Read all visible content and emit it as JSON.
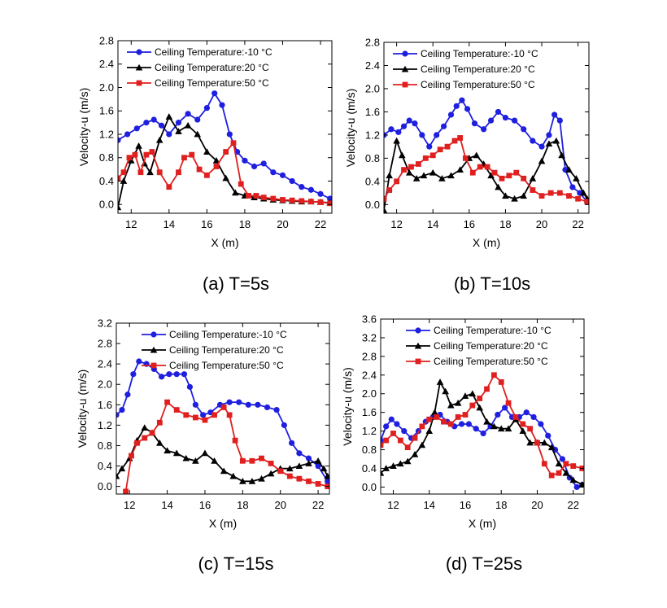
{
  "chart_data": [
    {
      "type": "line",
      "caption": "(a) T=5s",
      "xlabel": "X (m)",
      "ylabel": "Velocity-u (m/s)",
      "xlim": [
        11.3,
        22.6
      ],
      "ylim": [
        -0.15,
        2.8
      ],
      "xticks": [
        12,
        14,
        16,
        18,
        20,
        22
      ],
      "yticks": [
        0.0,
        0.4,
        0.8,
        1.2,
        1.6,
        2.0,
        2.4,
        2.8
      ],
      "yticklabels": [
        "0.0",
        "0.4",
        "0.8",
        "1.2",
        "1.6",
        "2.0",
        "2.4",
        "2.8"
      ],
      "legend_pos": "top-left",
      "series": [
        {
          "name": "Ceiling Temperature:-10 °C",
          "color": "#1f1fe0",
          "marker": "circle",
          "x": [
            11.3,
            11.8,
            12.3,
            12.8,
            13.2,
            13.6,
            14.0,
            14.5,
            15.0,
            15.5,
            16.0,
            16.4,
            16.8,
            17.2,
            17.6,
            18.0,
            18.5,
            19.0,
            19.5,
            20.0,
            20.5,
            21.0,
            21.5,
            22.0,
            22.5
          ],
          "y": [
            1.1,
            1.2,
            1.3,
            1.4,
            1.45,
            1.35,
            1.2,
            1.4,
            1.55,
            1.45,
            1.65,
            1.9,
            1.7,
            1.2,
            0.9,
            0.75,
            0.65,
            0.7,
            0.55,
            0.5,
            0.4,
            0.3,
            0.25,
            0.18,
            0.1
          ]
        },
        {
          "name": "Ceiling Temperature:20 °C",
          "color": "#000000",
          "marker": "triangle",
          "x": [
            11.3,
            11.6,
            12.0,
            12.4,
            12.7,
            13.0,
            13.5,
            14.0,
            14.5,
            15.0,
            15.5,
            16.0,
            16.5,
            17.0,
            17.5,
            18.0,
            18.5,
            19.0,
            19.5,
            20.0,
            20.5,
            21.0,
            21.5,
            22.0,
            22.5
          ],
          "y": [
            -0.05,
            0.4,
            0.75,
            1.0,
            0.7,
            0.55,
            1.1,
            1.5,
            1.25,
            1.35,
            1.2,
            0.9,
            0.75,
            0.45,
            0.2,
            0.15,
            0.12,
            0.1,
            0.08,
            0.07,
            0.06,
            0.05,
            0.05,
            0.04,
            0.03
          ]
        },
        {
          "name": "Ceiling Temperature:50 °C",
          "color": "#e01f1f",
          "marker": "square",
          "x": [
            11.3,
            11.6,
            11.9,
            12.2,
            12.5,
            12.8,
            13.1,
            13.5,
            14.0,
            14.5,
            14.8,
            15.2,
            15.6,
            16.0,
            16.5,
            17.0,
            17.4,
            17.8,
            18.2,
            18.6,
            19.0,
            19.5,
            20.0,
            20.5,
            21.0,
            21.5,
            22.0,
            22.5
          ],
          "y": [
            0.45,
            0.55,
            0.8,
            0.85,
            0.55,
            0.85,
            0.9,
            0.55,
            0.3,
            0.55,
            0.8,
            0.85,
            0.6,
            0.5,
            0.65,
            0.9,
            1.05,
            0.35,
            0.15,
            0.15,
            0.12,
            0.1,
            0.08,
            0.07,
            0.06,
            0.05,
            0.04,
            0.02
          ]
        }
      ]
    },
    {
      "type": "line",
      "caption": "(b) T=10s",
      "xlabel": "X (m)",
      "ylabel": "Velocity-u (m/s)",
      "xlim": [
        11.3,
        22.6
      ],
      "ylim": [
        -0.15,
        2.8
      ],
      "xticks": [
        12,
        14,
        16,
        18,
        20,
        22
      ],
      "yticks": [
        0.0,
        0.4,
        0.8,
        1.2,
        1.6,
        2.0,
        2.4,
        2.8
      ],
      "yticklabels": [
        "0.0",
        "0.4",
        "0.8",
        "1.2",
        "1.6",
        "2.0",
        "2.4",
        "2.8"
      ],
      "legend_pos": "top-left",
      "series": [
        {
          "name": "Ceiling Temperature:-10 °C",
          "color": "#1f1fe0",
          "marker": "circle",
          "x": [
            11.3,
            11.7,
            12.1,
            12.4,
            12.7,
            13.0,
            13.4,
            13.8,
            14.2,
            14.6,
            15.0,
            15.3,
            15.6,
            15.9,
            16.3,
            16.8,
            17.2,
            17.6,
            18.0,
            18.5,
            19.0,
            19.5,
            20.0,
            20.4,
            20.7,
            21.0,
            21.3,
            21.7,
            22.1,
            22.5
          ],
          "y": [
            1.2,
            1.3,
            1.25,
            1.35,
            1.45,
            1.4,
            1.2,
            1.0,
            1.2,
            1.35,
            1.55,
            1.7,
            1.8,
            1.65,
            1.4,
            1.3,
            1.45,
            1.6,
            1.5,
            1.45,
            1.3,
            1.1,
            1.0,
            1.2,
            1.55,
            1.45,
            0.6,
            0.3,
            0.2,
            0.05
          ]
        },
        {
          "name": "Ceiling Temperature:20 °C",
          "color": "#000000",
          "marker": "triangle",
          "x": [
            11.3,
            11.6,
            12.0,
            12.3,
            12.7,
            13.1,
            13.5,
            14.0,
            14.5,
            15.0,
            15.5,
            16.0,
            16.4,
            16.8,
            17.2,
            17.6,
            18.0,
            18.5,
            19.0,
            19.5,
            20.0,
            20.4,
            20.8,
            21.1,
            21.5,
            21.9,
            22.3,
            22.5
          ],
          "y": [
            -0.1,
            0.5,
            1.1,
            0.85,
            0.55,
            0.45,
            0.5,
            0.55,
            0.45,
            0.5,
            0.6,
            0.8,
            0.85,
            0.7,
            0.5,
            0.3,
            0.15,
            0.1,
            0.15,
            0.45,
            0.75,
            1.05,
            1.1,
            0.85,
            0.6,
            0.45,
            0.2,
            0.1
          ]
        },
        {
          "name": "Ceiling Temperature:50 °C",
          "color": "#e01f1f",
          "marker": "square",
          "x": [
            11.3,
            11.6,
            12.0,
            12.4,
            12.8,
            13.2,
            13.6,
            14.0,
            14.4,
            14.8,
            15.2,
            15.5,
            15.8,
            16.2,
            16.6,
            17.0,
            17.4,
            17.8,
            18.2,
            18.6,
            19.0,
            19.5,
            20.0,
            20.5,
            21.0,
            21.5,
            22.0,
            22.5
          ],
          "y": [
            0.1,
            0.25,
            0.4,
            0.6,
            0.65,
            0.7,
            0.8,
            0.85,
            0.95,
            1.0,
            1.1,
            1.15,
            0.8,
            0.55,
            0.65,
            0.65,
            0.55,
            0.45,
            0.5,
            0.55,
            0.45,
            0.25,
            0.15,
            0.2,
            0.2,
            0.15,
            0.1,
            0.05
          ]
        }
      ]
    },
    {
      "type": "line",
      "caption": "(c) T=15s",
      "xlabel": "X (m)",
      "ylabel": "Velocity-u (m/s)",
      "xlim": [
        11.3,
        22.6
      ],
      "ylim": [
        -0.15,
        3.2
      ],
      "xticks": [
        12,
        14,
        16,
        18,
        20,
        22
      ],
      "yticks": [
        0.0,
        0.4,
        0.8,
        1.2,
        1.6,
        2.0,
        2.4,
        2.8,
        3.2
      ],
      "yticklabels": [
        "0.0",
        "0.4",
        "0.8",
        "1.2",
        "1.6",
        "2.0",
        "2.4",
        "2.8",
        "3.2"
      ],
      "legend_pos": "top-right",
      "series": [
        {
          "name": "Ceiling Temperature:-10 °C",
          "color": "#1f1fe0",
          "marker": "circle",
          "x": [
            11.3,
            11.6,
            11.9,
            12.2,
            12.5,
            12.9,
            13.3,
            13.7,
            14.1,
            14.5,
            14.9,
            15.2,
            15.5,
            15.9,
            16.3,
            16.8,
            17.3,
            17.8,
            18.3,
            18.8,
            19.3,
            19.8,
            20.2,
            20.6,
            21.0,
            21.5,
            22.0,
            22.5
          ],
          "y": [
            1.4,
            1.5,
            1.8,
            2.2,
            2.45,
            2.4,
            2.3,
            2.15,
            2.2,
            2.2,
            2.2,
            1.95,
            1.6,
            1.4,
            1.45,
            1.6,
            1.65,
            1.65,
            1.6,
            1.6,
            1.55,
            1.5,
            1.2,
            0.85,
            0.65,
            0.55,
            0.4,
            0.1
          ]
        },
        {
          "name": "Ceiling Temperature:20 °C",
          "color": "#000000",
          "marker": "triangle",
          "x": [
            11.3,
            11.6,
            12.0,
            12.4,
            12.8,
            13.2,
            13.6,
            14.0,
            14.5,
            15.0,
            15.5,
            16.0,
            16.5,
            17.0,
            17.5,
            18.0,
            18.5,
            19.0,
            19.5,
            20.0,
            20.5,
            21.0,
            21.5,
            22.0,
            22.3,
            22.5
          ],
          "y": [
            0.2,
            0.35,
            0.55,
            0.9,
            1.15,
            1.05,
            0.85,
            0.7,
            0.65,
            0.55,
            0.5,
            0.65,
            0.5,
            0.3,
            0.2,
            0.1,
            0.1,
            0.15,
            0.25,
            0.35,
            0.35,
            0.4,
            0.45,
            0.5,
            0.35,
            0.2
          ]
        },
        {
          "name": "Ceiling Temperature:50 °C",
          "color": "#e01f1f",
          "marker": "square",
          "x": [
            11.8,
            12.1,
            12.4,
            12.8,
            13.2,
            13.6,
            14.0,
            14.5,
            15.0,
            15.5,
            16.0,
            16.5,
            17.0,
            17.3,
            17.6,
            18.0,
            18.5,
            19.0,
            19.5,
            20.0,
            20.5,
            21.0,
            21.5,
            22.0,
            22.5
          ],
          "y": [
            -0.1,
            0.6,
            0.85,
            0.95,
            1.05,
            1.25,
            1.65,
            1.5,
            1.4,
            1.35,
            1.3,
            1.4,
            1.55,
            1.4,
            0.9,
            0.5,
            0.5,
            0.55,
            0.45,
            0.3,
            0.2,
            0.15,
            0.1,
            0.05,
            0.0
          ]
        }
      ]
    },
    {
      "type": "line",
      "caption": "(d) T=25s",
      "xlabel": "X (m)",
      "ylabel": "Velocity-u (m/s)",
      "xlim": [
        11.3,
        22.6
      ],
      "ylim": [
        -0.15,
        3.6
      ],
      "xticks": [
        12,
        14,
        16,
        18,
        20,
        22
      ],
      "yticks": [
        0.0,
        0.4,
        0.8,
        1.2,
        1.6,
        2.0,
        2.4,
        2.8,
        3.2,
        3.6
      ],
      "yticklabels": [
        "0.0",
        "0.4",
        "0.8",
        "1.2",
        "1.6",
        "2.0",
        "2.4",
        "2.8",
        "3.2",
        "3.6"
      ],
      "legend_pos": "top-right",
      "series": [
        {
          "name": "Ceiling Temperature:-10 °C",
          "color": "#1f1fe0",
          "marker": "circle",
          "x": [
            11.3,
            11.6,
            11.9,
            12.2,
            12.6,
            13.0,
            13.4,
            13.8,
            14.2,
            14.6,
            15.0,
            15.4,
            15.8,
            16.2,
            16.6,
            17.0,
            17.4,
            17.8,
            18.2,
            18.6,
            19.0,
            19.4,
            19.8,
            20.2,
            20.6,
            21.0,
            21.4,
            21.8,
            22.2,
            22.5
          ],
          "y": [
            1.0,
            1.3,
            1.45,
            1.35,
            1.2,
            1.05,
            1.2,
            1.4,
            1.5,
            1.55,
            1.4,
            1.3,
            1.35,
            1.35,
            1.25,
            1.15,
            1.3,
            1.55,
            1.7,
            1.5,
            1.5,
            1.6,
            1.5,
            1.35,
            1.1,
            0.8,
            0.6,
            0.2,
            0.0,
            0.05
          ]
        },
        {
          "name": "Ceiling Temperature:20 °C",
          "color": "#000000",
          "marker": "triangle",
          "x": [
            11.3,
            11.6,
            12.0,
            12.4,
            12.8,
            13.2,
            13.6,
            14.0,
            14.3,
            14.6,
            14.9,
            15.2,
            15.6,
            16.0,
            16.4,
            16.8,
            17.2,
            17.6,
            18.0,
            18.4,
            18.8,
            19.2,
            19.6,
            20.0,
            20.4,
            20.8,
            21.2,
            21.6,
            22.0,
            22.5
          ],
          "y": [
            0.3,
            0.4,
            0.45,
            0.5,
            0.55,
            0.7,
            0.9,
            1.2,
            1.6,
            2.25,
            2.05,
            1.75,
            1.8,
            1.95,
            2.0,
            1.7,
            1.4,
            1.3,
            1.25,
            1.25,
            1.45,
            1.2,
            0.95,
            0.95,
            0.95,
            0.85,
            0.5,
            0.3,
            0.15,
            0.05
          ]
        },
        {
          "name": "Ceiling Temperature:50 °C",
          "color": "#e01f1f",
          "marker": "square",
          "x": [
            11.3,
            11.6,
            12.0,
            12.4,
            12.8,
            13.2,
            13.6,
            14.0,
            14.4,
            14.8,
            15.2,
            15.6,
            16.0,
            16.4,
            16.8,
            17.2,
            17.6,
            18.0,
            18.4,
            18.8,
            19.2,
            19.6,
            20.0,
            20.4,
            20.8,
            21.2,
            21.6,
            22.0,
            22.5
          ],
          "y": [
            0.9,
            1.0,
            1.15,
            1.0,
            0.85,
            1.05,
            1.3,
            1.45,
            1.5,
            1.4,
            1.35,
            1.5,
            1.55,
            1.75,
            1.9,
            2.1,
            2.4,
            2.25,
            1.8,
            1.5,
            1.35,
            1.25,
            0.95,
            0.5,
            0.25,
            0.3,
            0.5,
            0.45,
            0.4
          ]
        }
      ]
    }
  ]
}
